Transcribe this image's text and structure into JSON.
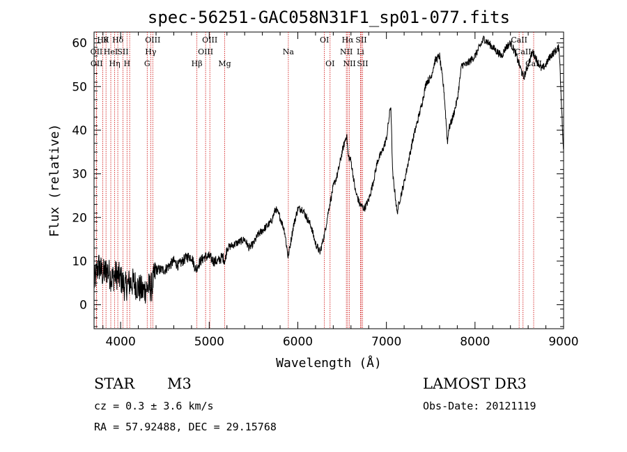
{
  "chart_data": {
    "type": "line",
    "title": "spec-56251-GAC058N31F1_sp01-077.fits",
    "xlabel": "Wavelength (Å)",
    "ylabel": "Flux (relative)",
    "xlim": [
      3700,
      9000
    ],
    "ylim": [
      -5.5,
      62.5
    ],
    "x_ticks": [
      4000,
      5000,
      6000,
      7000,
      8000,
      9000
    ],
    "y_ticks": [
      0,
      10,
      20,
      30,
      40,
      50,
      60
    ],
    "colors": {
      "spectrum": "#000000",
      "lines": "#cc0000",
      "axes": "#000000"
    },
    "spectrum_anchors": [
      [
        3700,
        5
      ],
      [
        3750,
        9
      ],
      [
        3800,
        7
      ],
      [
        3850,
        8
      ],
      [
        3900,
        6
      ],
      [
        3950,
        7
      ],
      [
        4000,
        6
      ],
      [
        4050,
        4
      ],
      [
        4100,
        5
      ],
      [
        4150,
        5
      ],
      [
        4200,
        4
      ],
      [
        4250,
        3
      ],
      [
        4300,
        4
      ],
      [
        4350,
        4
      ],
      [
        4400,
        8
      ],
      [
        4450,
        8
      ],
      [
        4500,
        8
      ],
      [
        4550,
        9
      ],
      [
        4600,
        10
      ],
      [
        4650,
        9
      ],
      [
        4700,
        10
      ],
      [
        4750,
        11
      ],
      [
        4800,
        11
      ],
      [
        4850,
        8
      ],
      [
        4870,
        9
      ],
      [
        4900,
        10
      ],
      [
        4950,
        11
      ],
      [
        5000,
        11
      ],
      [
        5050,
        10
      ],
      [
        5100,
        10
      ],
      [
        5150,
        11
      ],
      [
        5180,
        10
      ],
      [
        5200,
        13
      ],
      [
        5300,
        14
      ],
      [
        5400,
        15
      ],
      [
        5450,
        13
      ],
      [
        5500,
        14
      ],
      [
        5550,
        16
      ],
      [
        5600,
        17
      ],
      [
        5700,
        19
      ],
      [
        5750,
        22
      ],
      [
        5800,
        20
      ],
      [
        5850,
        17
      ],
      [
        5890,
        11
      ],
      [
        5900,
        12
      ],
      [
        5950,
        18
      ],
      [
        6000,
        22
      ],
      [
        6050,
        22
      ],
      [
        6100,
        20
      ],
      [
        6150,
        18
      ],
      [
        6200,
        14
      ],
      [
        6250,
        12
      ],
      [
        6300,
        16
      ],
      [
        6350,
        22
      ],
      [
        6400,
        27
      ],
      [
        6450,
        30
      ],
      [
        6500,
        35
      ],
      [
        6550,
        39
      ],
      [
        6570,
        34
      ],
      [
        6600,
        33
      ],
      [
        6650,
        26
      ],
      [
        6700,
        23
      ],
      [
        6750,
        22
      ],
      [
        6800,
        24
      ],
      [
        6850,
        28
      ],
      [
        6900,
        33
      ],
      [
        6950,
        35
      ],
      [
        7000,
        38
      ],
      [
        7050,
        46
      ],
      [
        7070,
        30
      ],
      [
        7100,
        25
      ],
      [
        7120,
        21
      ],
      [
        7150,
        24
      ],
      [
        7200,
        28
      ],
      [
        7250,
        33
      ],
      [
        7300,
        38
      ],
      [
        7350,
        42
      ],
      [
        7400,
        46
      ],
      [
        7450,
        51
      ],
      [
        7500,
        52
      ],
      [
        7550,
        56
      ],
      [
        7600,
        57
      ],
      [
        7650,
        49
      ],
      [
        7690,
        37
      ],
      [
        7700,
        40
      ],
      [
        7750,
        43
      ],
      [
        7800,
        47
      ],
      [
        7850,
        55
      ],
      [
        7900,
        55
      ],
      [
        7950,
        56
      ],
      [
        8000,
        57
      ],
      [
        8050,
        59
      ],
      [
        8100,
        61
      ],
      [
        8150,
        60
      ],
      [
        8200,
        59
      ],
      [
        8250,
        58
      ],
      [
        8300,
        57
      ],
      [
        8350,
        59
      ],
      [
        8400,
        60
      ],
      [
        8450,
        58
      ],
      [
        8500,
        55
      ],
      [
        8550,
        52
      ],
      [
        8600,
        55
      ],
      [
        8650,
        58
      ],
      [
        8700,
        56
      ],
      [
        8750,
        54
      ],
      [
        8800,
        55
      ],
      [
        8850,
        57
      ],
      [
        8900,
        58
      ],
      [
        8950,
        59
      ],
      [
        9000,
        34
      ]
    ],
    "lines": [
      {
        "wavelength": 3798,
        "label": "Hθ",
        "row": 0
      },
      {
        "wavelength": 3727,
        "label": "OII",
        "row": 1
      },
      {
        "wavelength": 3729,
        "label": "OII",
        "row": 2
      },
      {
        "wavelength": 3835,
        "label": "K",
        "row": 0
      },
      {
        "wavelength": 3889,
        "label": "HeI",
        "row": 1
      },
      {
        "wavelength": 3933,
        "label": "Hη",
        "row": 2
      },
      {
        "wavelength": 3968,
        "label": "Hδ",
        "row": 0
      },
      {
        "wavelength": 4026,
        "label": "SII",
        "row": 1
      },
      {
        "wavelength": 4072,
        "label": "H",
        "row": 2
      },
      {
        "wavelength": 4102,
        "label": "",
        "row": 0
      },
      {
        "wavelength": 4300,
        "label": "G",
        "row": 2
      },
      {
        "wavelength": 4340,
        "label": "Hγ",
        "row": 1
      },
      {
        "wavelength": 4363,
        "label": "OIII",
        "row": 0
      },
      {
        "wavelength": 4861,
        "label": "Hβ",
        "row": 2
      },
      {
        "wavelength": 4959,
        "label": "OIII",
        "row": 1
      },
      {
        "wavelength": 5007,
        "label": "OIII",
        "row": 0
      },
      {
        "wavelength": 5175,
        "label": "Mg",
        "row": 2
      },
      {
        "wavelength": 5893,
        "label": "Na",
        "row": 1
      },
      {
        "wavelength": 6300,
        "label": "OI",
        "row": 0
      },
      {
        "wavelength": 6364,
        "label": "OI",
        "row": 2
      },
      {
        "wavelength": 6548,
        "label": "NII",
        "row": 1
      },
      {
        "wavelength": 6563,
        "label": "Hα",
        "row": 0
      },
      {
        "wavelength": 6583,
        "label": "NII",
        "row": 2
      },
      {
        "wavelength": 6707,
        "label": "Li",
        "row": 1
      },
      {
        "wavelength": 6716,
        "label": "SII",
        "row": 0
      },
      {
        "wavelength": 6731,
        "label": "SII",
        "row": 2
      },
      {
        "wavelength": 8498,
        "label": "CaII",
        "row": 0
      },
      {
        "wavelength": 8542,
        "label": "CaII",
        "row": 1
      },
      {
        "wavelength": 8662,
        "label": "CaII",
        "row": 2
      }
    ]
  },
  "info": {
    "class": "STAR",
    "subclass": "M3",
    "survey": "LAMOST DR3",
    "cz": "cz = 0.3 ± 3.6 km/s",
    "obs_date": "Obs-Date: 20121119",
    "coords": "RA =  57.92488, DEC =  29.15768"
  }
}
